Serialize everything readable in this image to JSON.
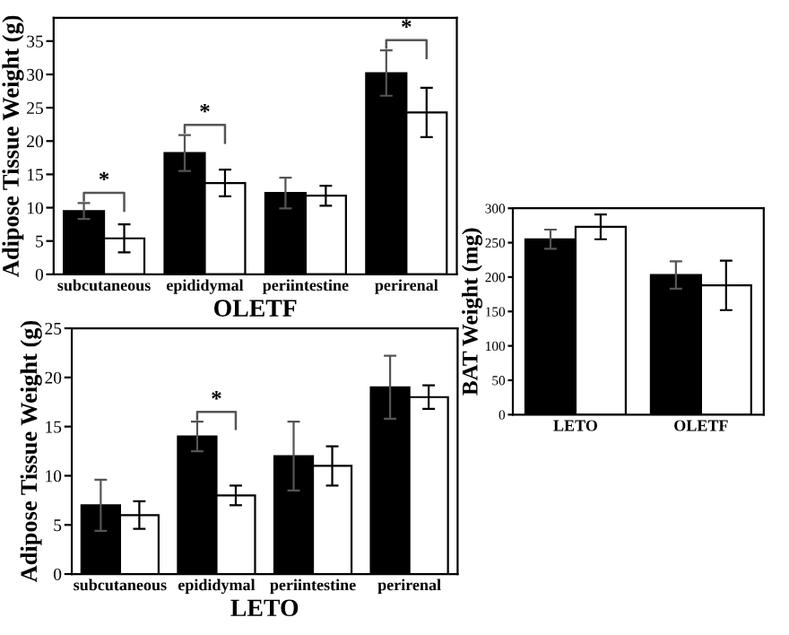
{
  "chart_data": [
    {
      "type": "bar",
      "xlabel": "OLETF",
      "ylabel": "Adipose Tissue Weight (g)",
      "categories": [
        "subcutaneous",
        "epididymal",
        "periintestine",
        "perirenal"
      ],
      "series": [
        {
          "color": "#000000",
          "values": [
            9.5,
            18.2,
            12.2,
            30.2
          ],
          "errors": [
            1.2,
            2.7,
            2.3,
            3.4
          ]
        },
        {
          "color": "#ffffff",
          "values": [
            5.4,
            13.7,
            11.8,
            24.3
          ],
          "errors": [
            2.1,
            2.0,
            1.5,
            3.7
          ]
        }
      ],
      "ylim": [
        0,
        38.5
      ],
      "yticks": [
        0,
        5,
        10,
        15,
        20,
        25,
        30,
        35
      ],
      "grid": false,
      "legend": false,
      "annotations": [
        {
          "text": "*",
          "x": "subcutaneous",
          "y": 9.5
        },
        {
          "text": "*",
          "x": "epididymal",
          "y": 18.2
        },
        {
          "text": "*",
          "x": "perirenal",
          "y": 30.2
        }
      ]
    },
    {
      "type": "bar",
      "xlabel": "LETO",
      "ylabel": "Adipose Tissue Weight (g)",
      "categories": [
        "subcutaneous",
        "epididymal",
        "periintestine",
        "perirenal"
      ],
      "series": [
        {
          "color": "#000000",
          "values": [
            7,
            14,
            12,
            19
          ],
          "errors": [
            2.6,
            1.5,
            3.5,
            3.2
          ]
        },
        {
          "color": "#ffffff",
          "values": [
            6,
            8,
            11,
            18
          ],
          "errors": [
            1.4,
            1.0,
            2.0,
            1.2
          ]
        }
      ],
      "ylim": [
        0,
        25
      ],
      "yticks": [
        0,
        5,
        10,
        15,
        20,
        25
      ],
      "grid": false,
      "legend": false,
      "annotations": [
        {
          "text": "*",
          "x": "epididymal",
          "y": 14
        }
      ]
    },
    {
      "type": "bar",
      "ylabel": "BAT Weight (mg)",
      "categories": [
        "LETO",
        "OLETF"
      ],
      "series": [
        {
          "color": "#000000",
          "values": [
            255,
            203
          ],
          "errors": [
            14,
            20
          ]
        },
        {
          "color": "#ffffff",
          "values": [
            273,
            188
          ],
          "errors": [
            18,
            36
          ]
        }
      ],
      "ylim": [
        0,
        300
      ],
      "yticks": [
        0,
        50,
        100,
        150,
        200,
        250,
        300
      ],
      "grid": false,
      "legend": false
    }
  ]
}
